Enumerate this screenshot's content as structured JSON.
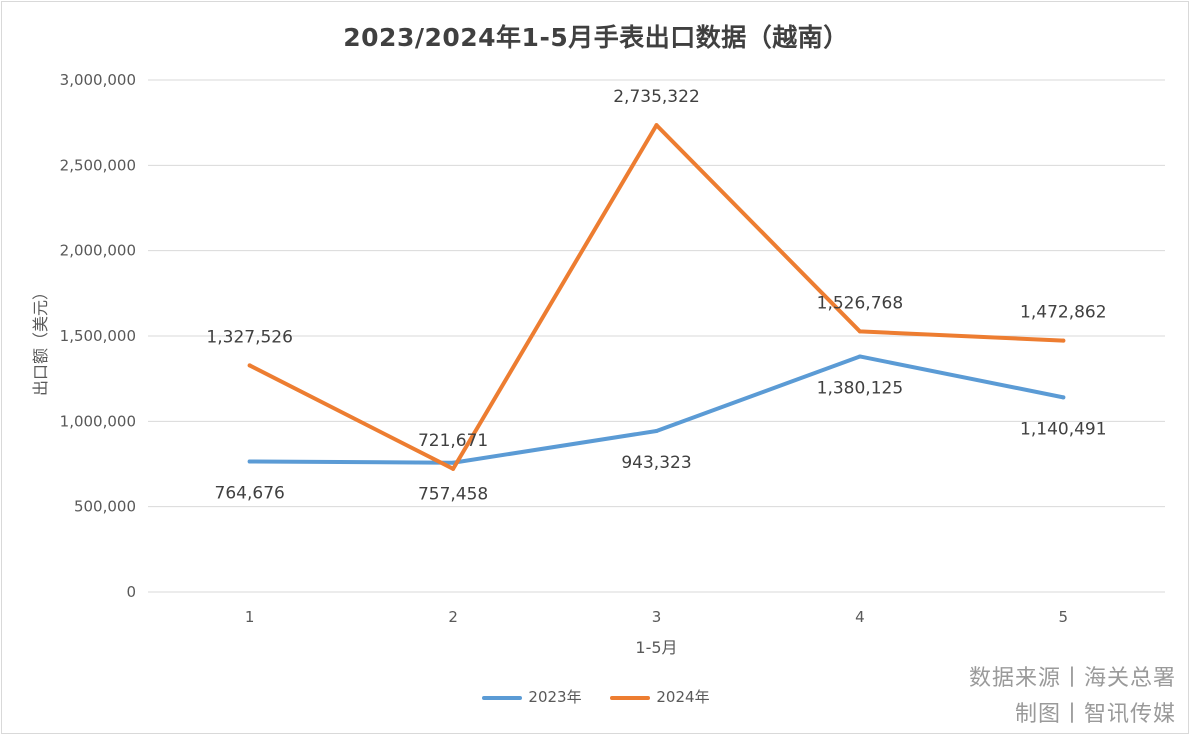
{
  "chart_data": {
    "type": "line",
    "title": "2023/2024年1-5月手表出口数据（越南）",
    "xlabel": "1-5月",
    "ylabel": "出口额（美元）",
    "categories": [
      "1",
      "2",
      "3",
      "4",
      "5"
    ],
    "ylim": [
      0,
      3000000
    ],
    "yticks": [
      0,
      500000,
      1000000,
      1500000,
      2000000,
      2500000,
      3000000
    ],
    "ytick_labels": [
      "0",
      "500,000",
      "1,000,000",
      "1,500,000",
      "2,000,000",
      "2,500,000",
      "3,000,000"
    ],
    "grid": true,
    "legend_position": "bottom",
    "series": [
      {
        "name": "2023年",
        "color": "#5b9bd5",
        "values": [
          764676,
          757458,
          943323,
          1380125,
          1140491
        ],
        "labels": [
          "764,676",
          "757,458",
          "943,323",
          "1,380,125",
          "1,140,491"
        ],
        "label_position": "below"
      },
      {
        "name": "2024年",
        "color": "#ed7d31",
        "values": [
          1327526,
          721671,
          2735322,
          1526768,
          1472862
        ],
        "labels": [
          "1,327,526",
          "721,671",
          "2,735,322",
          "1,526,768",
          "1,472,862"
        ],
        "label_position": "above"
      }
    ]
  },
  "watermark": {
    "line1": "数据来源丨海关总署",
    "line2": "制图丨智讯传媒"
  }
}
